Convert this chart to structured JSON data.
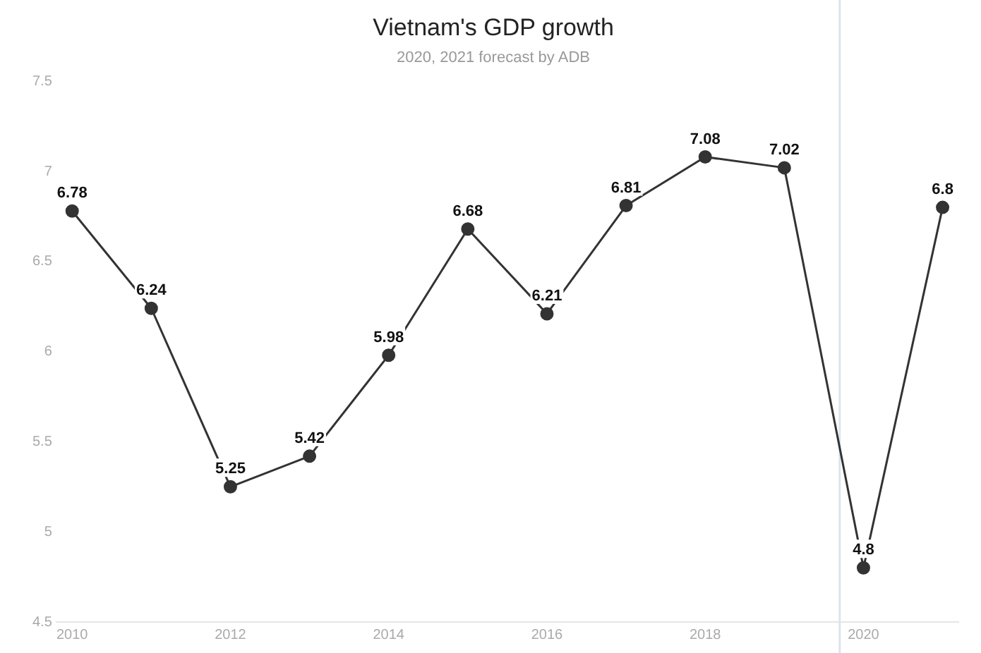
{
  "chart_data": {
    "type": "line",
    "title": "Vietnam's GDP growth",
    "subtitle": "2020, 2021 forecast by ADB",
    "x": [
      2010,
      2011,
      2012,
      2013,
      2014,
      2015,
      2016,
      2017,
      2018,
      2019,
      2020,
      2021
    ],
    "series": [
      {
        "color": "#333333",
        "values": [
          6.78,
          6.24,
          5.25,
          5.42,
          5.98,
          6.68,
          6.21,
          6.81,
          7.08,
          7.02,
          4.8,
          6.8
        ]
      }
    ],
    "xlim": [
      2009.8,
      2021.2
    ],
    "xticks": [
      2010,
      2012,
      2014,
      2016,
      2018,
      2020
    ],
    "ylim": [
      4.5,
      7.5
    ],
    "yticks": [
      4.5,
      5,
      5.5,
      6,
      6.5,
      7,
      7.5
    ],
    "ref_lines": [
      {
        "axis": "x",
        "value": 2019.7,
        "color": "#dde3ee"
      }
    ],
    "data_labels": true,
    "marker": "circle",
    "line_style": "solid",
    "grid": false,
    "legend": false
  }
}
